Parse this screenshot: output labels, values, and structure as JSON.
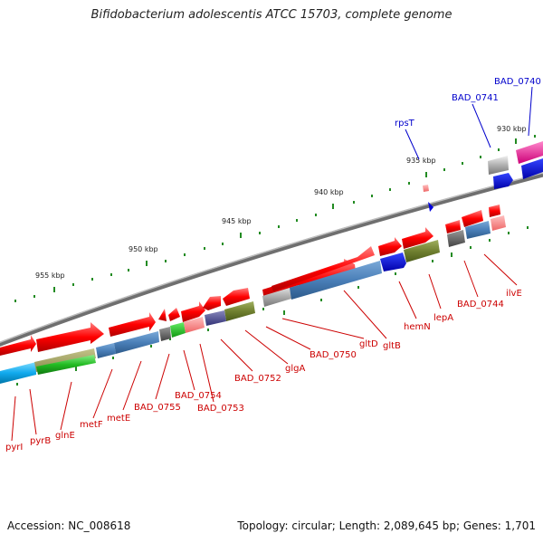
{
  "title": "Bifidobacterium adolescentis ATCC 15703, complete genome",
  "footer": {
    "accession": "Accession: NC_008618",
    "topology": "Topology: circular; Length: 2,089,645 bp; Genes: 1,701"
  },
  "ticks": [
    "930 kbp",
    "935 kbp",
    "940 kbp",
    "945 kbp",
    "950 kbp",
    "955 kbp"
  ],
  "genes_top": [
    "BAD_0740",
    "BAD_0741",
    "rpsT"
  ],
  "genes_bottom": [
    "ilvE",
    "BAD_0744",
    "lepA",
    "hemN",
    "gltB",
    "gltD",
    "BAD_0750",
    "glgA",
    "BAD_0752",
    "BAD_0753",
    "BAD_0754",
    "BAD_0755",
    "metE",
    "metF",
    "glnE",
    "pyrB",
    "pyrI"
  ],
  "colors": {
    "backbone": "#888888",
    "gene_forward": "#ff0000",
    "label_red": "#cc0000",
    "label_blue": "#0000cc",
    "tick_green": "#228b22"
  }
}
